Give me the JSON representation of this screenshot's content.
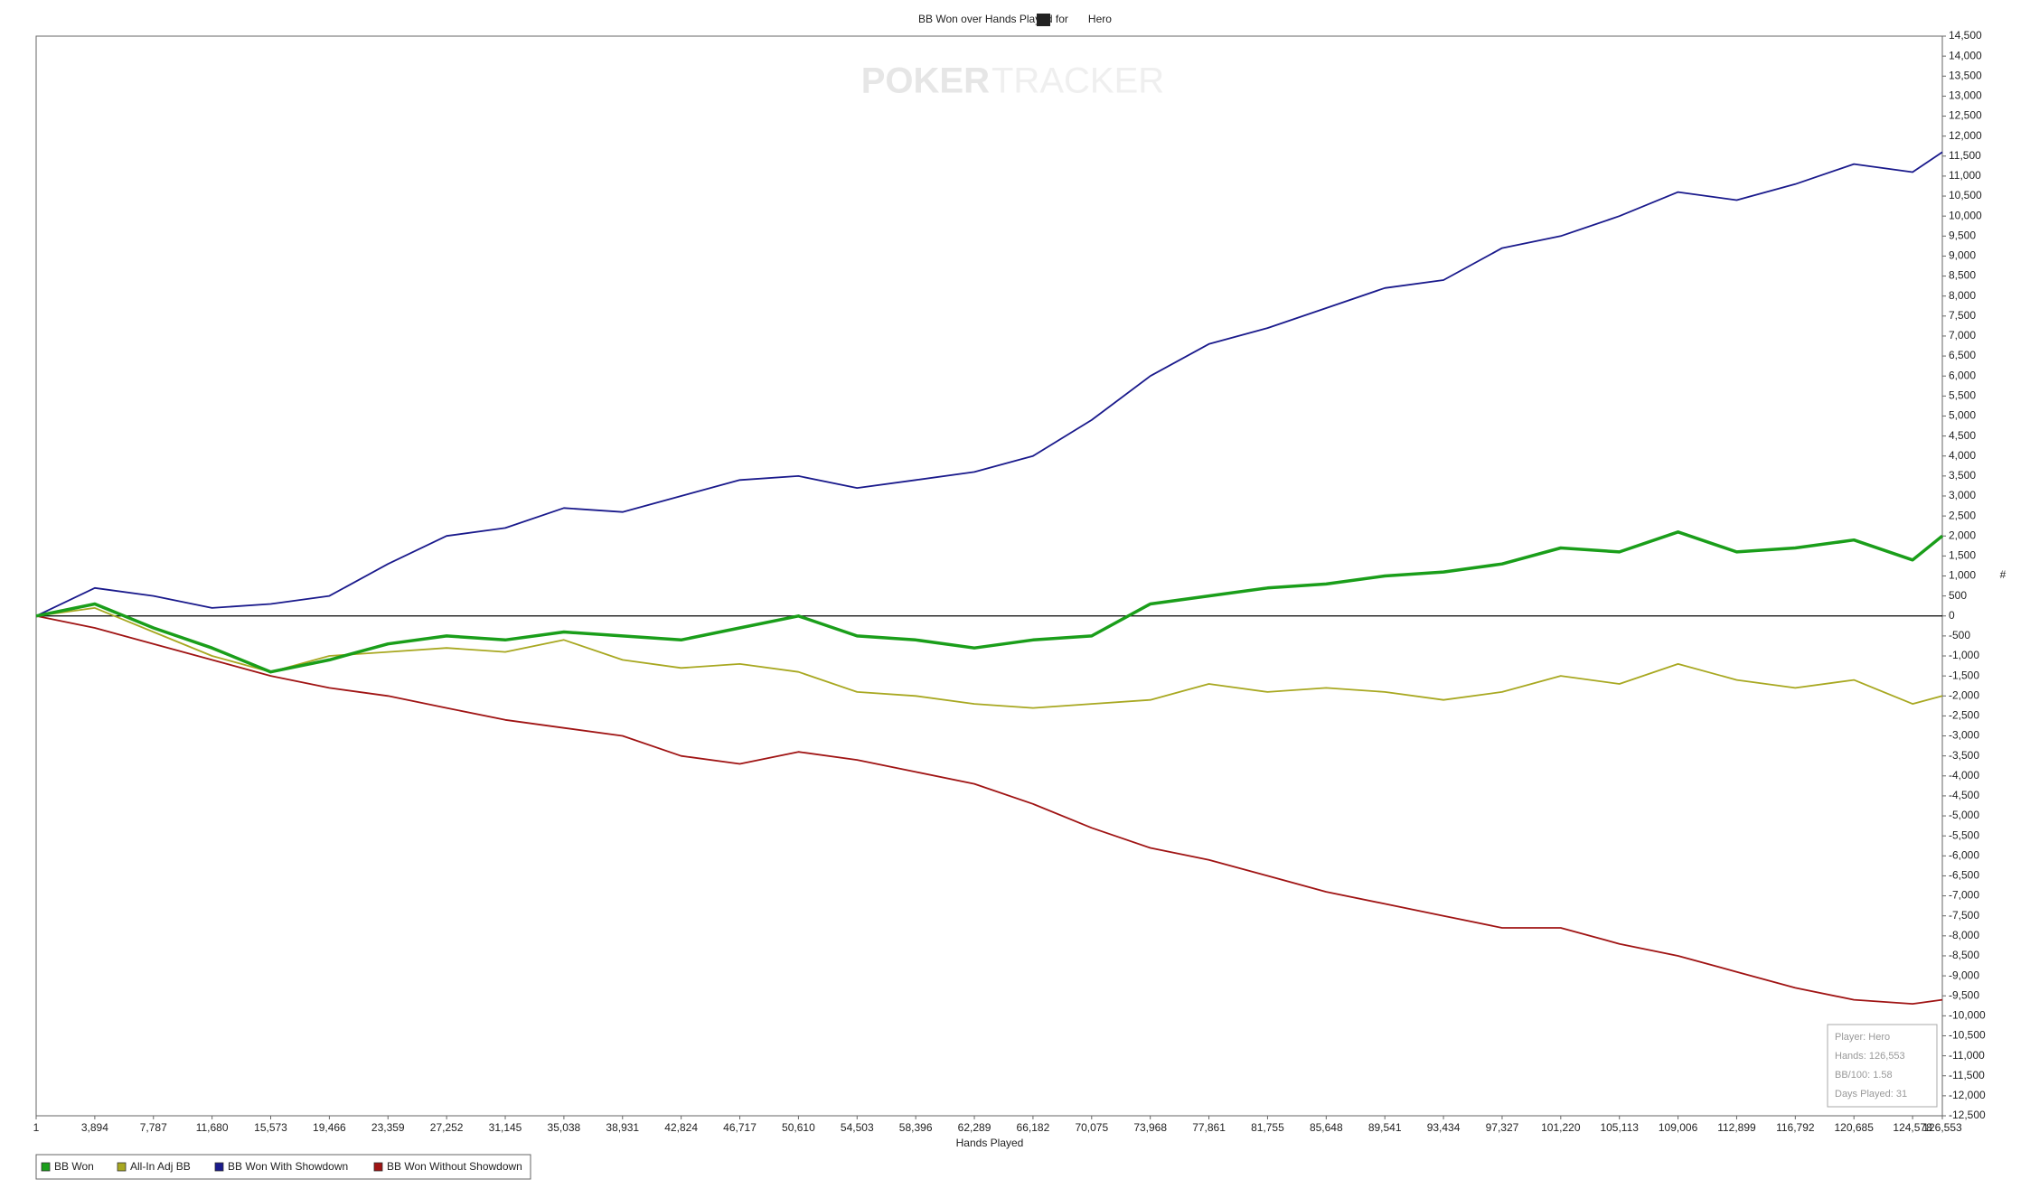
{
  "chart_data": {
    "type": "line",
    "title": "BB Won over Hands Played for",
    "title_player": "Hero",
    "watermark": [
      "POKER",
      "TRACKER"
    ],
    "x_label": "Hands Played",
    "y_label": "#",
    "x": [
      1,
      3894,
      7787,
      11680,
      15573,
      19466,
      23359,
      27252,
      31145,
      35038,
      38931,
      42824,
      46717,
      50610,
      54503,
      58396,
      62289,
      66182,
      70075,
      73968,
      77861,
      81755,
      85648,
      89541,
      93434,
      97327,
      101220,
      105113,
      109006,
      112899,
      116792,
      120685,
      124578,
      126553
    ],
    "series": [
      {
        "name": "BB Won",
        "color": "#1a9e1a",
        "width": 3.5,
        "values": [
          0,
          300,
          -300,
          -800,
          -1400,
          -1100,
          -700,
          -500,
          -600,
          -400,
          -500,
          -600,
          -300,
          0,
          -500,
          -600,
          -800,
          -600,
          -500,
          300,
          500,
          700,
          800,
          1000,
          1100,
          1300,
          1700,
          1600,
          2100,
          1600,
          1700,
          1900,
          1400,
          2000
        ]
      },
      {
        "name": "All-In Adj BB",
        "color": "#a8a821",
        "width": 1.8,
        "values": [
          0,
          200,
          -400,
          -1000,
          -1400,
          -1000,
          -900,
          -800,
          -900,
          -600,
          -1100,
          -1300,
          -1200,
          -1400,
          -1900,
          -2000,
          -2200,
          -2300,
          -2200,
          -2100,
          -1700,
          -1900,
          -1800,
          -1900,
          -2100,
          -1900,
          -1500,
          -1700,
          -1200,
          -1600,
          -1800,
          -1600,
          -2200,
          -2000
        ]
      },
      {
        "name": "BB Won With Showdown",
        "color": "#1a1a8c",
        "width": 1.8,
        "values": [
          0,
          700,
          500,
          200,
          300,
          500,
          1300,
          2000,
          2200,
          2700,
          2600,
          3000,
          3400,
          3500,
          3200,
          3400,
          3600,
          4000,
          4900,
          6000,
          6800,
          7200,
          7700,
          8200,
          8400,
          9200,
          9500,
          10000,
          10600,
          10400,
          10800,
          11300,
          11100,
          11600
        ]
      },
      {
        "name": "BB Won Without Showdown",
        "color": "#a01414",
        "width": 1.8,
        "values": [
          0,
          -300,
          -700,
          -1100,
          -1500,
          -1800,
          -2000,
          -2300,
          -2600,
          -2800,
          -3000,
          -3500,
          -3700,
          -3400,
          -3600,
          -3900,
          -4200,
          -4700,
          -5300,
          -5800,
          -6100,
          -6500,
          -6900,
          -7200,
          -7500,
          -7800,
          -7800,
          -8200,
          -8500,
          -8900,
          -9300,
          -9600,
          -9700,
          -9600
        ]
      }
    ],
    "xlim": [
      1,
      126553
    ],
    "xticks": [
      1,
      {
        "value": 3894,
        "label": "3,894"
      },
      {
        "value": 7787,
        "label": "7,787"
      },
      {
        "value": 11680,
        "label": "11,680"
      },
      {
        "value": 15573,
        "label": "15,573"
      },
      {
        "value": 19466,
        "label": "19,466"
      },
      {
        "value": 23359,
        "label": "23,359"
      },
      {
        "value": 27252,
        "label": "27,252"
      },
      {
        "value": 31145,
        "label": "31,145"
      },
      {
        "value": 35038,
        "label": "35,038"
      },
      {
        "value": 38931,
        "label": "38,931"
      },
      {
        "value": 42824,
        "label": "42,824"
      },
      {
        "value": 46717,
        "label": "46,717"
      },
      {
        "value": 50610,
        "label": "50,610"
      },
      {
        "value": 54503,
        "label": "54,503"
      },
      {
        "value": 58396,
        "label": "58,396"
      },
      {
        "value": 62289,
        "label": "62,289"
      },
      {
        "value": 66182,
        "label": "66,182"
      },
      {
        "value": 70075,
        "label": "70,075"
      },
      {
        "value": 73968,
        "label": "73,968"
      },
      {
        "value": 77861,
        "label": "77,861"
      },
      {
        "value": 81755,
        "label": "81,755"
      },
      {
        "value": 85648,
        "label": "85,648"
      },
      {
        "value": 89541,
        "label": "89,541"
      },
      {
        "value": 93434,
        "label": "93,434"
      },
      {
        "value": 97327,
        "label": "97,327"
      },
      {
        "value": 101220,
        "label": "101,220"
      },
      {
        "value": 105113,
        "label": "105,113"
      },
      {
        "value": 109006,
        "label": "109,006"
      },
      {
        "value": 112899,
        "label": "112,899"
      },
      {
        "value": 116792,
        "label": "116,792"
      },
      {
        "value": 120685,
        "label": "120,685"
      },
      {
        "value": 124578,
        "label": "124,578"
      },
      {
        "value": 126553,
        "label": "126,553"
      }
    ],
    "ylim": [
      -12500,
      14500
    ],
    "yticks": [
      {
        "value": -12500,
        "label": "-12,500"
      },
      {
        "value": -12000,
        "label": "-12,000"
      },
      {
        "value": -11500,
        "label": "-11,500"
      },
      {
        "value": -11000,
        "label": "-11,000"
      },
      {
        "value": -10500,
        "label": "-10,500"
      },
      {
        "value": -10000,
        "label": "-10,000"
      },
      {
        "value": -9500,
        "label": "-9,500"
      },
      {
        "value": -9000,
        "label": "-9,000"
      },
      {
        "value": -8500,
        "label": "-8,500"
      },
      {
        "value": -8000,
        "label": "-8,000"
      },
      {
        "value": -7500,
        "label": "-7,500"
      },
      {
        "value": -7000,
        "label": "-7,000"
      },
      {
        "value": -6500,
        "label": "-6,500"
      },
      {
        "value": -6000,
        "label": "-6,000"
      },
      {
        "value": -5500,
        "label": "-5,500"
      },
      {
        "value": -5000,
        "label": "-5,000"
      },
      {
        "value": -4500,
        "label": "-4,500"
      },
      {
        "value": -4000,
        "label": "-4,000"
      },
      {
        "value": -3500,
        "label": "-3,500"
      },
      {
        "value": -3000,
        "label": "-3,000"
      },
      {
        "value": -2500,
        "label": "-2,500"
      },
      {
        "value": -2000,
        "label": "-2,000"
      },
      {
        "value": -1500,
        "label": "-1,500"
      },
      {
        "value": -1000,
        "label": "-1,000"
      },
      -500,
      0,
      500,
      {
        "value": 1000,
        "label": "1,000"
      },
      {
        "value": 1500,
        "label": "1,500"
      },
      {
        "value": 2000,
        "label": "2,000"
      },
      {
        "value": 2500,
        "label": "2,500"
      },
      {
        "value": 3000,
        "label": "3,000"
      },
      {
        "value": 3500,
        "label": "3,500"
      },
      {
        "value": 4000,
        "label": "4,000"
      },
      {
        "value": 4500,
        "label": "4,500"
      },
      {
        "value": 5000,
        "label": "5,000"
      },
      {
        "value": 5500,
        "label": "5,500"
      },
      {
        "value": 6000,
        "label": "6,000"
      },
      {
        "value": 6500,
        "label": "6,500"
      },
      {
        "value": 7000,
        "label": "7,000"
      },
      {
        "value": 7500,
        "label": "7,500"
      },
      {
        "value": 8000,
        "label": "8,000"
      },
      {
        "value": 8500,
        "label": "8,500"
      },
      {
        "value": 9000,
        "label": "9,000"
      },
      {
        "value": 9500,
        "label": "9,500"
      },
      {
        "value": 10000,
        "label": "10,000"
      },
      {
        "value": 10500,
        "label": "10,500"
      },
      {
        "value": 11000,
        "label": "11,000"
      },
      {
        "value": 11500,
        "label": "11,500"
      },
      {
        "value": 12000,
        "label": "12,000"
      },
      {
        "value": 12500,
        "label": "12,500"
      },
      {
        "value": 13000,
        "label": "13,000"
      },
      {
        "value": 13500,
        "label": "13,500"
      },
      {
        "value": 14000,
        "label": "14,000"
      },
      {
        "value": 14500,
        "label": "14,500"
      }
    ],
    "y_axis_side": "right",
    "legend": "bottom-left",
    "info_box": [
      "Player: Hero",
      "Hands: 126,553",
      "BB/100: 1.58",
      "Days Played: 31"
    ]
  }
}
